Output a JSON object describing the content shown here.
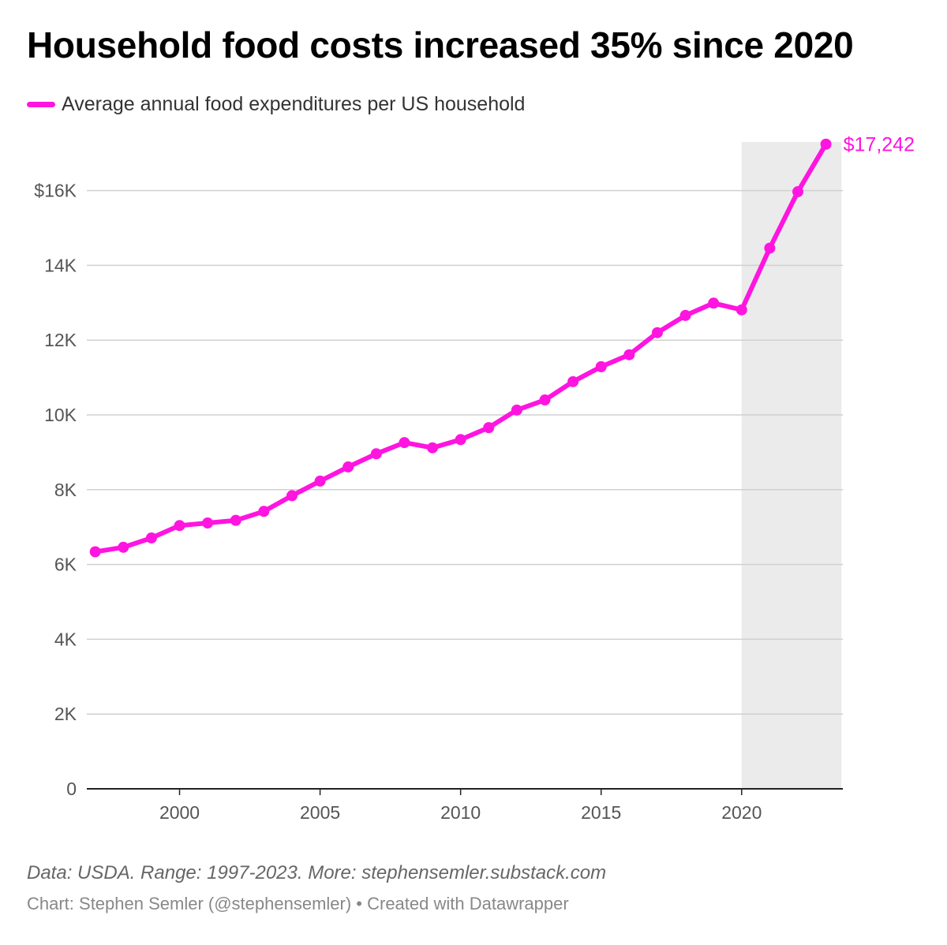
{
  "chart_data": {
    "type": "line",
    "title": "Household food costs increased 35% since 2020",
    "legend": {
      "position": "top-left",
      "entries": [
        "Average annual food expenditures per US household"
      ]
    },
    "series": [
      {
        "name": "Average annual food expenditures per US household",
        "color": "#ff14e0",
        "x": [
          1997,
          1998,
          1999,
          2000,
          2001,
          2002,
          2003,
          2004,
          2005,
          2006,
          2007,
          2008,
          2009,
          2010,
          2011,
          2012,
          2013,
          2014,
          2015,
          2016,
          2017,
          2018,
          2019,
          2020,
          2021,
          2022,
          2023
        ],
        "values": [
          6340,
          6460,
          6710,
          7040,
          7110,
          7180,
          7420,
          7840,
          8230,
          8610,
          8960,
          9260,
          9120,
          9340,
          9660,
          10130,
          10400,
          10890,
          11290,
          11610,
          12200,
          12660,
          12990,
          12810,
          14460,
          15970,
          17242
        ]
      }
    ],
    "end_label": "$17,242",
    "xlim": [
      1996.7,
      2023.6
    ],
    "ylim": [
      0,
      17300
    ],
    "x_ticks": [
      2000,
      2005,
      2010,
      2015,
      2020
    ],
    "x_tick_labels": [
      "2000",
      "2005",
      "2010",
      "2015",
      "2020"
    ],
    "y_ticks": [
      0,
      2000,
      4000,
      6000,
      8000,
      10000,
      12000,
      14000,
      16000
    ],
    "y_tick_labels": [
      "0",
      "2K",
      "4K",
      "6K",
      "8K",
      "10K",
      "12K",
      "14K",
      "$16K"
    ],
    "highlight_range": [
      2020,
      2023.55
    ],
    "grid": true,
    "xlabel": "",
    "ylabel": ""
  },
  "footer": {
    "source": "Data: USDA. Range: 1997-2023. More: stephensemler.substack.com",
    "credit": "Chart: Stephen Semler (@stephensemler) • Created with Datawrapper"
  }
}
